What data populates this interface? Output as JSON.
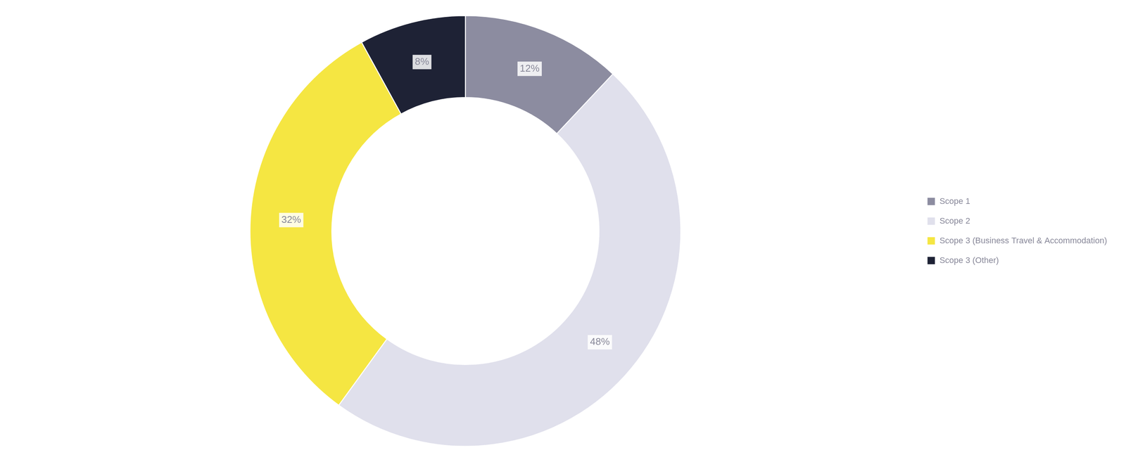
{
  "chart_data": {
    "type": "donut",
    "categories": [
      "Scope 1",
      "Scope 2",
      "Scope 3 (Business Travel & Accommodation)",
      "Scope 3 (Other)"
    ],
    "values": [
      12,
      48,
      32,
      8
    ],
    "value_labels": [
      "12%",
      "48%",
      "32%",
      "8%"
    ],
    "colors": [
      "#8c8ca0",
      "#e0e0ec",
      "#f5e642",
      "#1e2235"
    ],
    "legend": "right",
    "data_labels": true
  }
}
